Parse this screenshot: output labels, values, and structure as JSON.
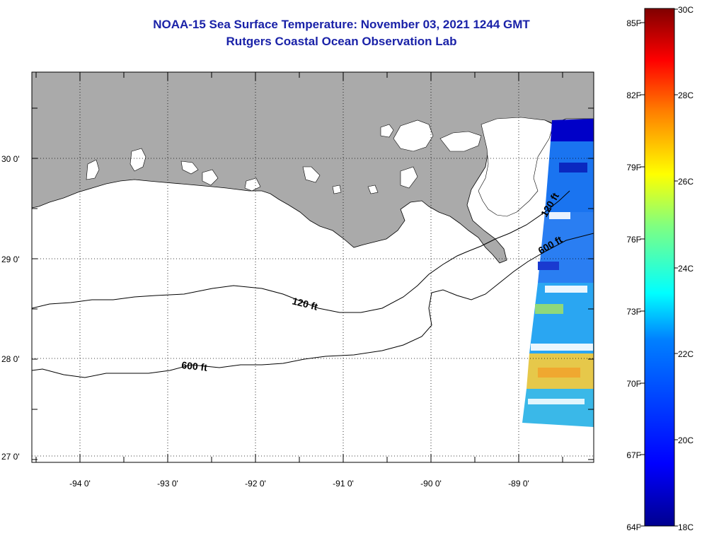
{
  "title": {
    "line1": "NOAA-15 Sea Surface Temperature:  November 03, 2021 1244 GMT",
    "line2": "Rutgers Coastal Ocean Observation Lab"
  },
  "map": {
    "lat_labels": [
      "30 0'",
      "29 0'",
      "28 0'",
      "27 0'"
    ],
    "lon_labels": [
      "-94 0'",
      "-93 0'",
      "-92 0'",
      "-91 0'",
      "-90 0'",
      "-89 0'"
    ],
    "contour_labels": [
      "120 ft",
      "600 ft",
      "120 ft",
      "600 ft"
    ],
    "colors": {
      "land": "#aaaaaa",
      "water": "#ffffff",
      "frame": "#000000"
    }
  },
  "colorbar": {
    "fahrenheit_labels": [
      "85F",
      "82F",
      "79F",
      "76F",
      "73F",
      "70F",
      "67F",
      "64F"
    ],
    "celsius_labels": [
      "30C",
      "28C",
      "26C",
      "24C",
      "22C",
      "20C",
      "18C"
    ],
    "colors": [
      "#00008f",
      "#0000ff",
      "#0080ff",
      "#00ffff",
      "#80ff80",
      "#ffff00",
      "#ff8000",
      "#ff0000",
      "#800000"
    ]
  }
}
